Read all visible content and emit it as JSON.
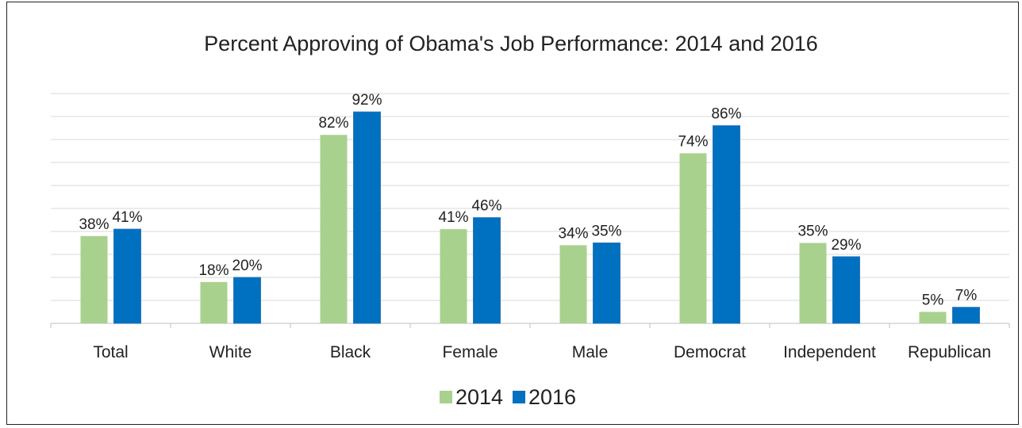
{
  "chart_data": {
    "type": "bar",
    "title": "Percent Approving of Obama's Job Performance: 2014 and 2016",
    "xlabel": "",
    "ylabel": "",
    "categories": [
      "Total",
      "White",
      "Black",
      "Female",
      "Male",
      "Democrat",
      "Independent",
      "Republican"
    ],
    "series": [
      {
        "name": "2014",
        "values": [
          38,
          18,
          82,
          41,
          34,
          74,
          35,
          5
        ],
        "labels": [
          "38%",
          "18%",
          "82%",
          "41%",
          "34%",
          "74%",
          "35%",
          "5%"
        ],
        "color": "#a9d18e"
      },
      {
        "name": "2016",
        "values": [
          41,
          20,
          92,
          46,
          35,
          86,
          29,
          7
        ],
        "labels": [
          "41%",
          "20%",
          "92%",
          "46%",
          "35%",
          "86%",
          "29%",
          "7%"
        ],
        "color": "#0070c0"
      }
    ],
    "ylim": [
      0,
      100
    ],
    "grid": true,
    "legend": "bottom"
  }
}
